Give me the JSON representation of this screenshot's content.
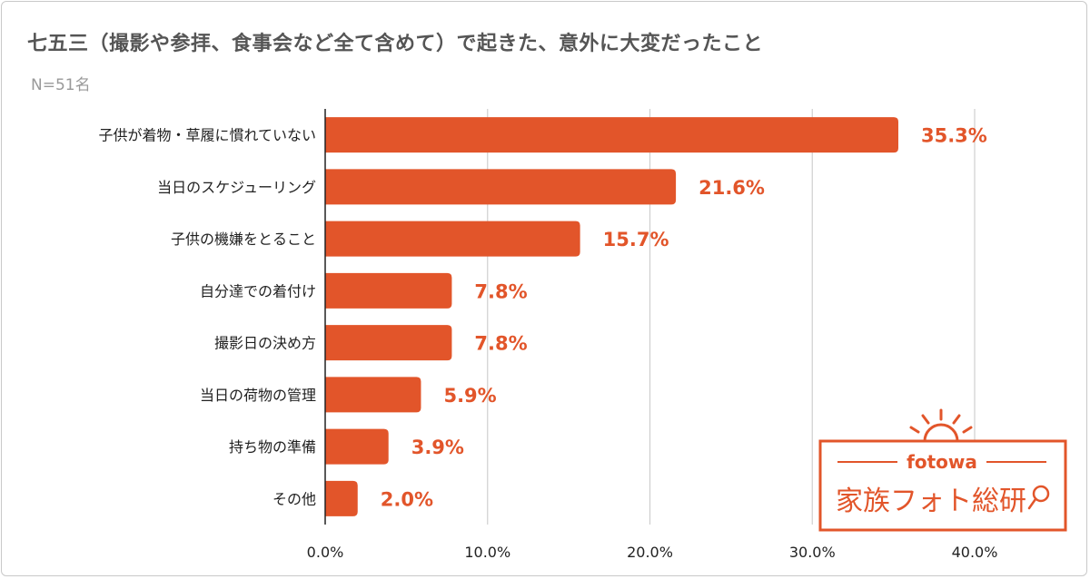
{
  "header": {
    "title": "七五三（撮影や参拝、食事会など全て含めて）で起きた、意外に大変だったこと",
    "sample": "N=51名"
  },
  "chart_data": {
    "type": "bar",
    "orientation": "horizontal",
    "categories": [
      "子供が着物・草履に慣れていない",
      "当日のスケジューリング",
      "子供の機嫌をとること",
      "自分達での着付け",
      "撮影日の決め方",
      "当日の荷物の管理",
      "持ち物の準備",
      "その他"
    ],
    "values": [
      35.3,
      21.6,
      15.7,
      7.8,
      7.8,
      5.9,
      3.9,
      2.0
    ],
    "value_labels": [
      "35.3%",
      "21.6%",
      "15.7%",
      "7.8%",
      "7.8%",
      "5.9%",
      "3.9%",
      "2.0%"
    ],
    "xlim": [
      0,
      40
    ],
    "ticks": [
      0,
      10,
      20,
      30,
      40
    ],
    "tick_labels": [
      "0.0%",
      "10.0%",
      "20.0%",
      "30.0%",
      "40.0%"
    ],
    "grid": true,
    "bar_color": "#e2552a",
    "grid_color": "#cfcfcf"
  },
  "logo": {
    "brand": "fotowa",
    "name": "家族フォト総研",
    "color": "#e2552a"
  }
}
